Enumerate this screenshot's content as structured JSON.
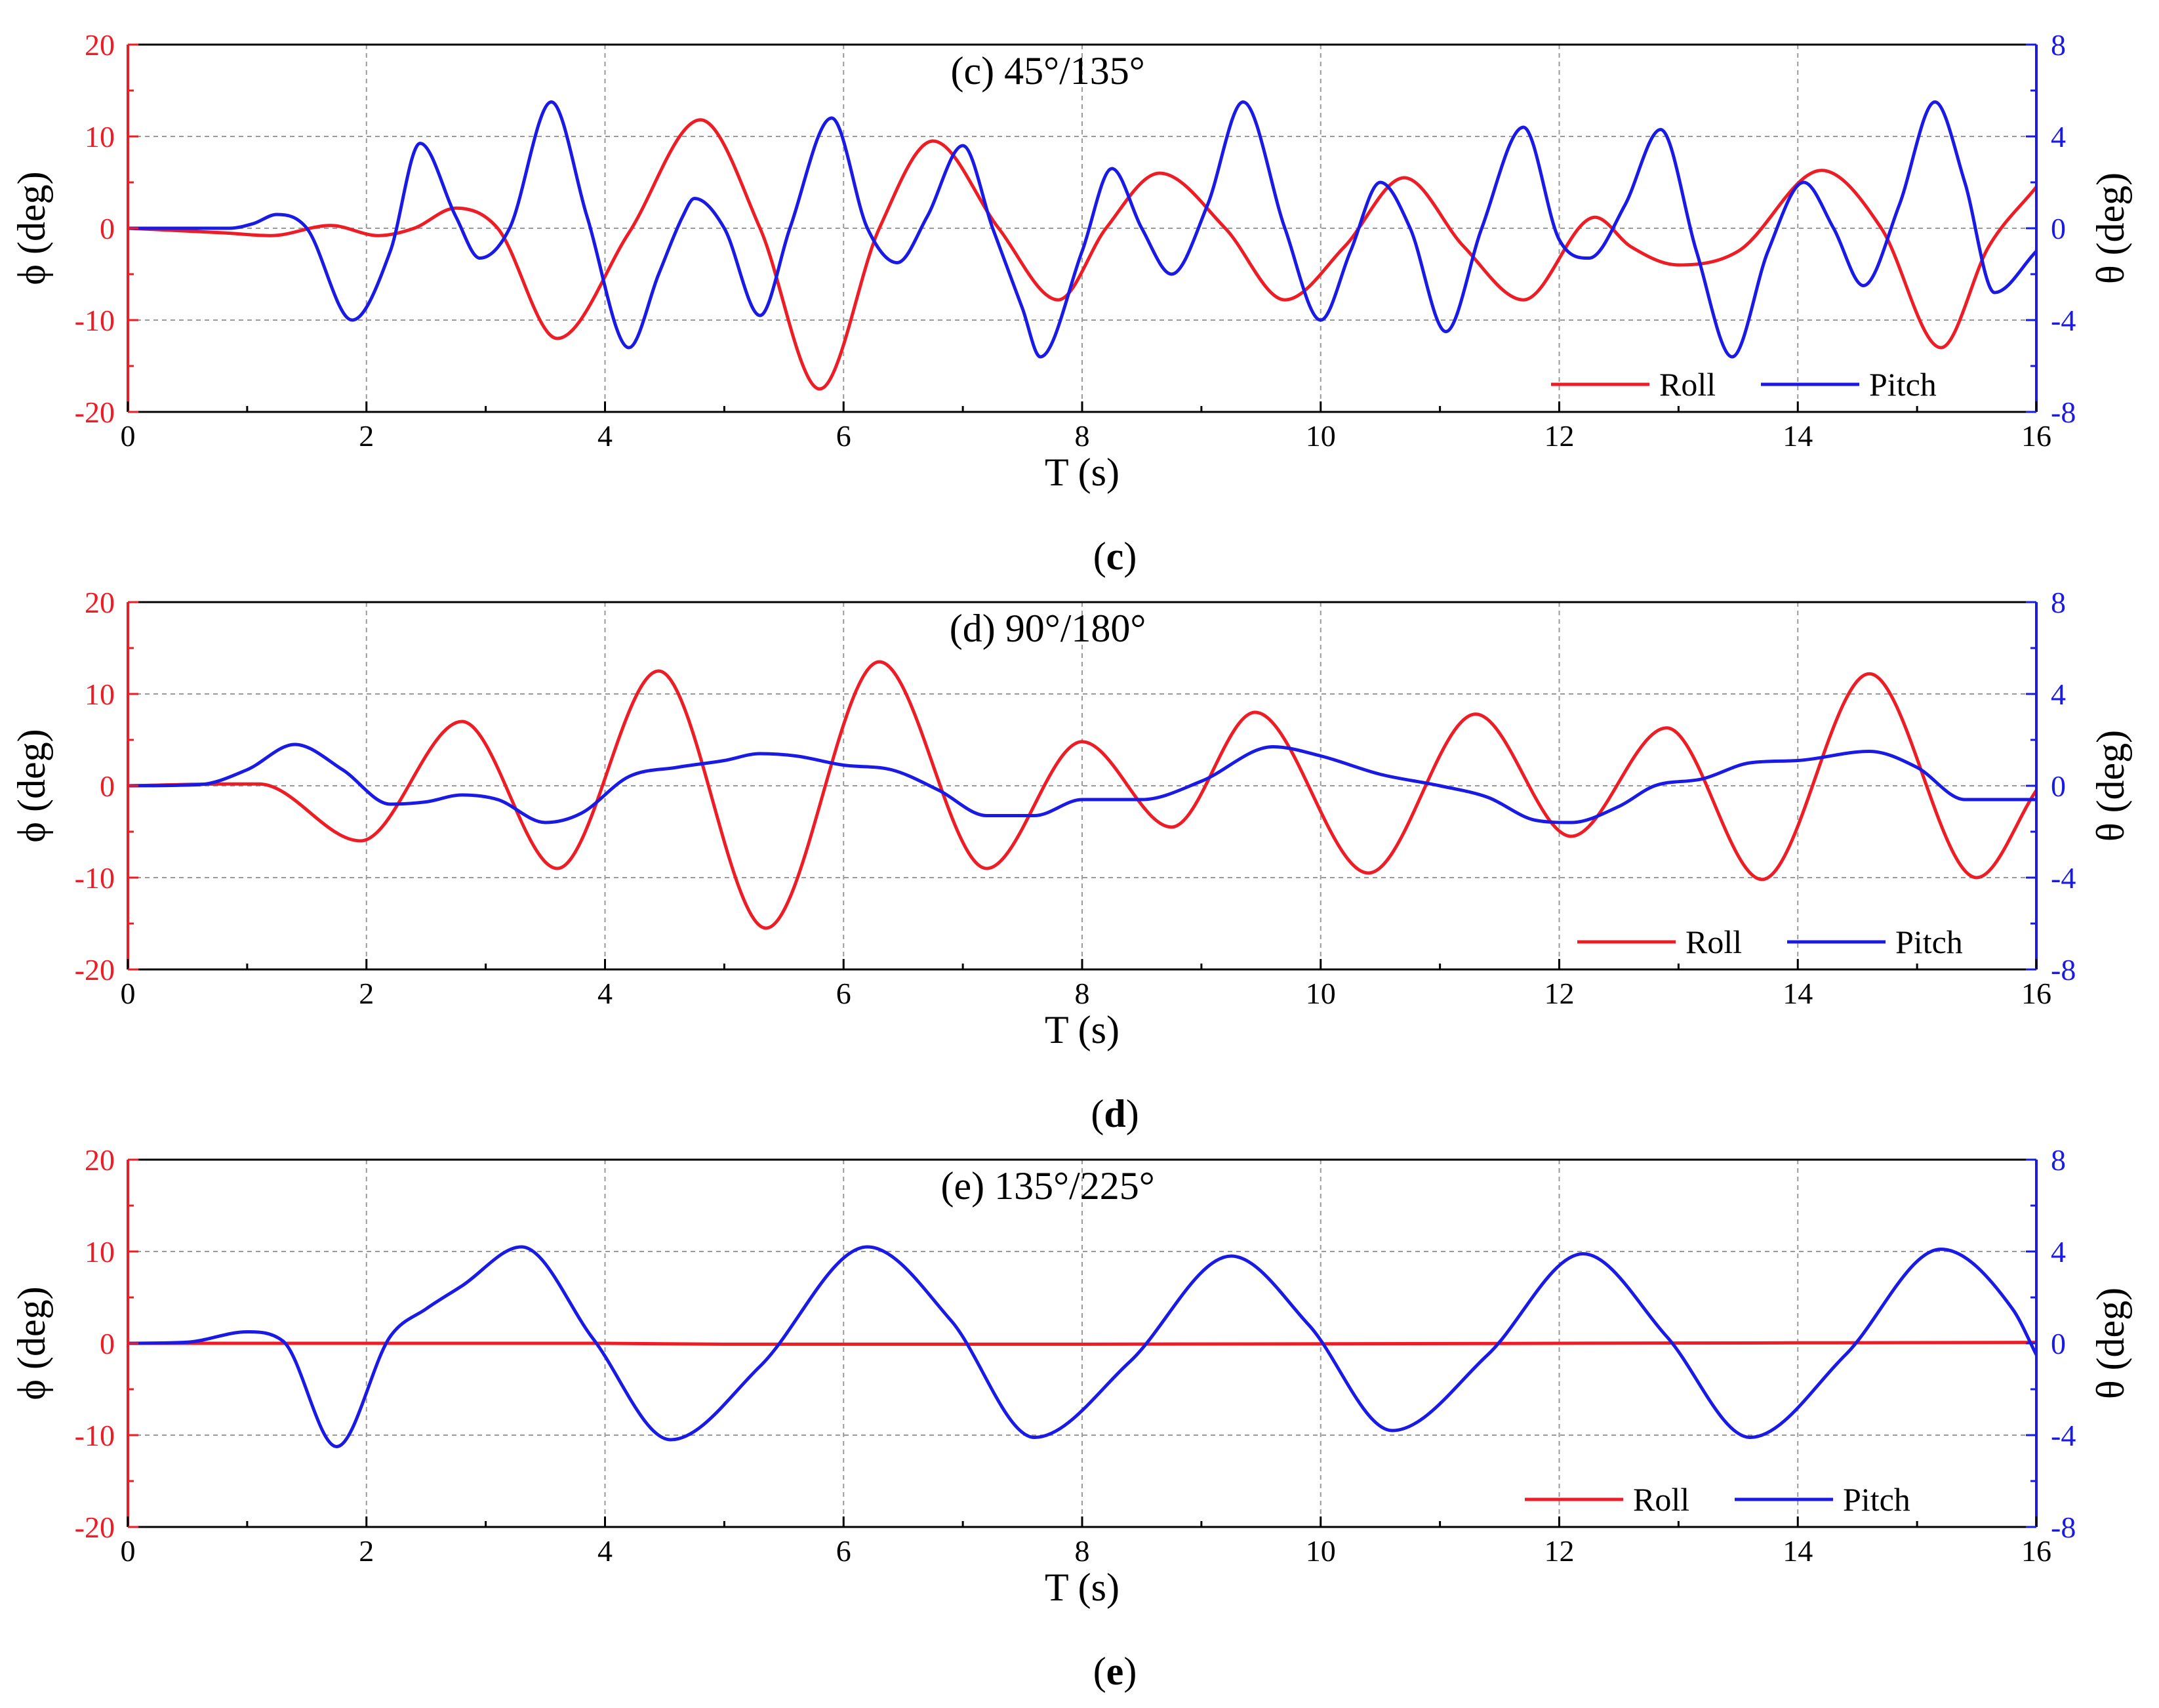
{
  "colors": {
    "roll": "#ee1c25",
    "pitch": "#1a1ae6",
    "left_axis": "#ee1c25",
    "right_axis": "#1a1ae6",
    "frame": "#000000",
    "grid": "#9a9a9a"
  },
  "chart_data": [
    {
      "type": "line",
      "title": "(c) 45°/135°",
      "caption": {
        "open": "(",
        "letter": "c",
        "close": ")"
      },
      "xlabel": "T (s)",
      "ylabel_left": "ϕ (deg)",
      "ylabel_right": "θ (deg)",
      "xlim": [
        0,
        16
      ],
      "ylim_left": [
        -20,
        20
      ],
      "ylim_right": [
        -8,
        8
      ],
      "xticks": [
        0,
        2,
        4,
        6,
        8,
        10,
        12,
        14,
        16
      ],
      "yticks_left": [
        -20,
        -10,
        0,
        10,
        20
      ],
      "yticks_right": [
        -8,
        -4,
        0,
        4,
        8
      ],
      "grid": true,
      "legend": {
        "location": "bottom-right",
        "entries": [
          "Roll",
          "Pitch"
        ]
      },
      "series": [
        {
          "name": "Roll",
          "axis": "left",
          "x": [
            0,
            0.8,
            1.2,
            1.7,
            2.1,
            2.4,
            2.75,
            3.1,
            3.6,
            4.2,
            4.8,
            5.3,
            5.8,
            6.3,
            6.75,
            7.3,
            7.8,
            8.2,
            8.65,
            9.2,
            9.7,
            10.2,
            10.7,
            11.2,
            11.7,
            12.3,
            12.6,
            13,
            13.5,
            14.2,
            14.7,
            15.2,
            15.6,
            16
          ],
          "y": [
            0,
            -0.5,
            -0.8,
            0.3,
            -0.8,
            0,
            2.2,
            0,
            -12,
            -0.5,
            11.8,
            0,
            -17.5,
            0,
            9.5,
            0,
            -7.8,
            0,
            6,
            0,
            -7.8,
            -2,
            5.5,
            -2,
            -7.8,
            1.2,
            -2,
            -4,
            -2.5,
            6.3,
            0,
            -13,
            -2,
            4.5
          ]
        },
        {
          "name": "Pitch",
          "axis": "right",
          "x": [
            0,
            0.85,
            1.05,
            1.25,
            1.5,
            1.88,
            2.2,
            2.45,
            2.75,
            2.95,
            3.2,
            3.55,
            3.85,
            4.2,
            4.45,
            4.65,
            4.75,
            5.0,
            5.3,
            5.55,
            5.9,
            6.2,
            6.45,
            6.7,
            7.0,
            7.25,
            7.5,
            7.65,
            8.0,
            8.25,
            8.5,
            8.75,
            9.05,
            9.35,
            9.7,
            10.0,
            10.25,
            10.5,
            10.75,
            11.05,
            11.35,
            11.7,
            12.0,
            12.25,
            12.55,
            12.85,
            13.15,
            13.45,
            13.75,
            14.05,
            14.3,
            14.55,
            14.85,
            15.15,
            15.4,
            15.65,
            16
          ],
          "y": [
            0,
            0,
            0.2,
            0.6,
            0,
            -4,
            -1,
            3.7,
            0.5,
            -1.3,
            0,
            5.5,
            0.5,
            -5.2,
            -2,
            0.5,
            1.3,
            0,
            -3.8,
            0,
            4.8,
            0,
            -1.5,
            0.5,
            3.6,
            0,
            -3.5,
            -5.6,
            -1,
            2.6,
            0,
            -2,
            1,
            5.5,
            0,
            -4,
            -1,
            2,
            0,
            -4.5,
            0,
            4.4,
            -0.5,
            -1.3,
            1,
            4.3,
            -1,
            -5.6,
            -1,
            2,
            0,
            -2.5,
            1,
            5.5,
            2,
            -2.8,
            -1
          ]
        }
      ]
    },
    {
      "type": "line",
      "title": "(d) 90°/180°",
      "caption": {
        "open": "(",
        "letter": "d",
        "close": ")"
      },
      "xlabel": "T (s)",
      "ylabel_left": "ϕ (deg)",
      "ylabel_right": "θ (deg)",
      "xlim": [
        0,
        16
      ],
      "ylim_left": [
        -20,
        20
      ],
      "ylim_right": [
        -8,
        8
      ],
      "xticks": [
        0,
        2,
        4,
        6,
        8,
        10,
        12,
        14,
        16
      ],
      "yticks_left": [
        -20,
        -10,
        0,
        10,
        20
      ],
      "yticks_right": [
        -8,
        -4,
        0,
        4,
        8
      ],
      "grid": true,
      "legend": {
        "location": "bottom-right",
        "entries": [
          "Roll",
          "Pitch"
        ]
      },
      "series": [
        {
          "name": "Roll",
          "axis": "left",
          "x": [
            0,
            0.8,
            1.1,
            1.95,
            2.8,
            3.6,
            4.45,
            5.35,
            6.3,
            7.2,
            8.0,
            8.75,
            9.45,
            10.4,
            11.3,
            12.1,
            12.9,
            13.7,
            14.6,
            15.5,
            16
          ],
          "y": [
            0,
            0.2,
            0.2,
            -6,
            7,
            -9,
            12.5,
            -15.5,
            13.5,
            -9,
            4.8,
            -4.5,
            8,
            -9.5,
            7.8,
            -5.5,
            6.3,
            -10.2,
            12.2,
            -10,
            -0.5
          ]
        },
        {
          "name": "Pitch",
          "axis": "right",
          "x": [
            0,
            0.6,
            1.0,
            1.4,
            1.8,
            2.2,
            2.5,
            2.8,
            3.1,
            3.5,
            3.8,
            4.2,
            4.6,
            5.0,
            5.3,
            5.6,
            6.0,
            6.4,
            6.8,
            7.2,
            7.6,
            8.0,
            8.5,
            9.0,
            9.6,
            10.0,
            10.5,
            11.0,
            11.4,
            11.8,
            12.1,
            12.5,
            12.8,
            13.2,
            13.6,
            14.0,
            14.6,
            15.0,
            15.4,
            16
          ],
          "y": [
            0,
            0.05,
            0.7,
            1.8,
            0.7,
            -0.8,
            -0.7,
            -0.4,
            -0.6,
            -1.6,
            -1.2,
            0.4,
            0.8,
            1.1,
            1.4,
            1.3,
            0.9,
            0.7,
            -0.2,
            -1.3,
            -1.3,
            -0.6,
            -0.6,
            0.2,
            1.7,
            1.3,
            0.5,
            0,
            -0.5,
            -1.5,
            -1.6,
            -0.9,
            0,
            0.3,
            1.0,
            1.1,
            1.5,
            0.8,
            -0.6,
            -0.6
          ]
        }
      ]
    },
    {
      "type": "line",
      "title": "(e) 135°/225°",
      "caption": {
        "open": "(",
        "letter": "e",
        "close": ")"
      },
      "xlabel": "T (s)",
      "ylabel_left": "ϕ (deg)",
      "ylabel_right": "θ (deg)",
      "xlim": [
        0,
        16
      ],
      "ylim_left": [
        -20,
        20
      ],
      "ylim_right": [
        -8,
        8
      ],
      "xticks": [
        0,
        2,
        4,
        6,
        8,
        10,
        12,
        14,
        16
      ],
      "yticks_left": [
        -20,
        -10,
        0,
        10,
        20
      ],
      "yticks_right": [
        -8,
        -4,
        0,
        4,
        8
      ],
      "grid": true,
      "legend": {
        "location": "bottom-right",
        "entries": [
          "Roll",
          "Pitch"
        ]
      },
      "series": [
        {
          "name": "Roll",
          "axis": "left",
          "x": [
            0,
            4,
            5,
            8,
            12,
            16
          ],
          "y": [
            0,
            0,
            -0.1,
            -0.1,
            0,
            0.1
          ]
        },
        {
          "name": "Pitch",
          "axis": "right",
          "x": [
            0,
            0.5,
            1.0,
            1.3,
            1.75,
            2.2,
            2.5,
            2.8,
            3.3,
            3.9,
            4.55,
            5.3,
            6.2,
            6.9,
            7.6,
            8.4,
            9.25,
            9.9,
            10.6,
            11.4,
            12.2,
            12.9,
            13.6,
            14.4,
            15.2,
            15.8,
            16
          ],
          "y": [
            0,
            0.05,
            0.5,
            0.1,
            -4.5,
            0.3,
            1.5,
            2.5,
            4.2,
            0.2,
            -4.2,
            -1.0,
            4.2,
            1.0,
            -4.1,
            -0.8,
            3.8,
            0.8,
            -3.8,
            -0.5,
            3.9,
            0.3,
            -4.1,
            -0.5,
            4.1,
            1.5,
            -0.5
          ]
        }
      ]
    }
  ]
}
